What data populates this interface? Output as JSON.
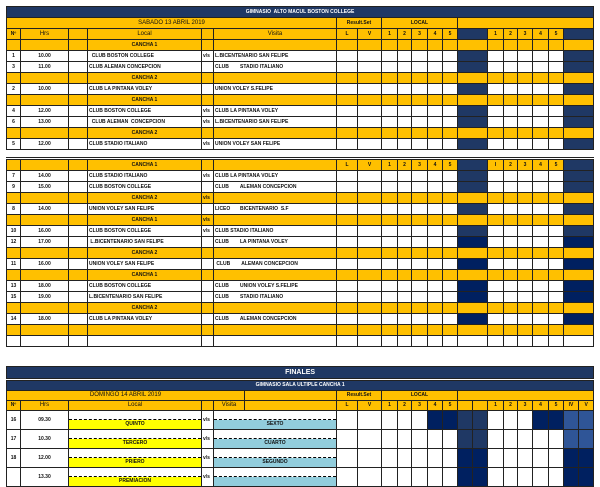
{
  "schedule": {
    "title": "GIMNASIO  ALTO MACUL BOSTON COLLEGE",
    "date": "SABADO 13 ABRIL 2019",
    "result_set": "Result.Set",
    "local_label": "LOCAL",
    "headers": {
      "n": "Nº",
      "hrs": "Hrs",
      "local": "Local",
      "visita": "Visita",
      "l": "L",
      "v": "V",
      "sets": [
        "1",
        "2",
        "3",
        "4",
        "5"
      ]
    },
    "colors": {
      "yellow": "#ffc000",
      "dark": "#1f3864",
      "navy": "#002060"
    },
    "rows": [
      {
        "type": "cancha",
        "label": "CANCHA 1"
      },
      {
        "n": "1",
        "hrs": "10.00",
        "local": "  CLUB BOSTON COLLEGE",
        "vs": "v/s",
        "visita": "L.BICENTENARIO SAN FELIPE",
        "shade": "#1f3864"
      },
      {
        "n": "3",
        "hrs": "11.00",
        "local": "CLUB ALEMAN CONCEPCION",
        "vs": "",
        "visita": "CLUB        STADIO ITALIANO",
        "shade": "#1f3864"
      },
      {
        "type": "cancha",
        "label": "CANCHA 2"
      },
      {
        "n": "2",
        "hrs": "10.00",
        "local": "CLUB LA PINTANA VOLEY",
        "vs": "",
        "visita": "UNION VOLEY S.FELIPE",
        "shade": "#1f3864"
      },
      {
        "type": "cancha",
        "label": "CANCHA 1"
      },
      {
        "n": "4",
        "hrs": "12.00",
        "local": "CLUB BOSTON COLLEGE",
        "vs": "v/s",
        "visita": "CLUB LA PINTANA VOLEY",
        "shade": "#1f3864"
      },
      {
        "n": "6",
        "hrs": "13.00",
        "local": "  CLUB ALEMAN  CONCEPCION",
        "vs": "v/s",
        "visita": "L.BICENTENARIO SAN FELIPE",
        "shade": "#1f3864"
      },
      {
        "type": "cancha",
        "label": "CANCHA 2"
      },
      {
        "n": "5",
        "hrs": "12.00",
        "local": "CLUB STADIO ITALIANO",
        "vs": "v/s",
        "visita": "UNION VOLEY SAN FELIPE",
        "shade": "#1f3864"
      }
    ],
    "second": {
      "header": {
        "label": "CANCHA 1",
        "l": "L",
        "v": "V",
        "sets_left": [
          "1",
          "2",
          "3",
          "4",
          "5"
        ],
        "sets_right": [
          "I",
          "2",
          "3",
          "4",
          "5"
        ]
      },
      "rows": [
        {
          "n": "7",
          "hrs": "14.00",
          "local": "CLUB STADIO ITALIANO",
          "vs": "v/s",
          "visita": "CLUB LA PINTANA VOLEY",
          "shade": "#1f3864"
        },
        {
          "n": "9",
          "hrs": "15.00",
          "local": "CLUB BOSTON COLLEGE",
          "vs": "",
          "visita": "CLUB        ALEMAN CONCEPCION",
          "shade": "#1f3864"
        },
        {
          "type": "cancha",
          "label": "CANCHA 2",
          "vs": "v/s"
        },
        {
          "n": "8",
          "hrs": "14.00",
          "local": "UNION VOLEY SAN FELIPE",
          "vs": "",
          "visita": "LICEO       BICENTENARIO  S.F",
          "shade": "#1f3864"
        },
        {
          "type": "cancha",
          "label": "CANCHA 1",
          "vs": "v/s"
        },
        {
          "n": "10",
          "hrs": "16.00",
          "local": "CLUB BOSTON COLLEGE",
          "vs": "v/s",
          "visita": "CLUB STADIO ITALIANO",
          "shade": "#1f3864"
        },
        {
          "n": "12",
          "hrs": "17.00",
          "local": " L.BICENTENARIO SAN FELIPE",
          "vs": "",
          "visita": "CLUB        LA PINTANA VOLEY",
          "shade": "#002060"
        },
        {
          "type": "cancha",
          "label": "CANCHA 2"
        },
        {
          "n": "11",
          "hrs": "16.00",
          "local": "UNION VOLEY SAN FELIPE",
          "vs": "",
          "visita": " CLUB        ALEMAN CONCEPCION",
          "shade": "#002060"
        },
        {
          "type": "cancha",
          "label": "CANCHA 1"
        },
        {
          "n": "13",
          "hrs": "18.00",
          "local": "CLUB BOSTON COLLEGE",
          "vs": "",
          "visita": "CLUB        UNION VOLEY S.FELIPE",
          "shade": "#002060"
        },
        {
          "n": "15",
          "hrs": "19.00",
          "local": "L.BICENTENARIO SAN FELIPE",
          "vs": "",
          "visita": "CLUB        STADIO ITALIANO",
          "shade": "#002060"
        },
        {
          "type": "cancha",
          "label": "CANCHA 2"
        },
        {
          "n": "14",
          "hrs": "18.00",
          "local": "CLUB LA PINTANA VOLEY",
          "vs": "",
          "visita": "CLUB        ALEMAN CONCEPCION",
          "shade": "#002060"
        },
        {
          "type": "cancha",
          "label": ""
        },
        {
          "type": "blank"
        }
      ]
    }
  },
  "finals": {
    "title": "FINALES",
    "gym": "GIMNASIO SALA ULTIPLE CANCHA 1",
    "date": "DOMINGO 14 ABRIL 2019",
    "result_set": "Result.Set",
    "local_label": "LOCAL",
    "headers": {
      "n": "Nº",
      "hrs": "Hrs",
      "local": "Local",
      "visita": "Visita",
      "l": "L",
      "v": "V",
      "sets": [
        "1",
        "2",
        "3",
        "4",
        "5"
      ],
      "extra": [
        "IV",
        "V"
      ]
    },
    "rows": [
      {
        "n": "16",
        "hrs": "09.30",
        "local": "QUINTO",
        "vs": "v/s",
        "visita": "SEXTO",
        "shade": "#1f3864"
      },
      {
        "n": "17",
        "hrs": "10.30",
        "local": "TERCERO",
        "vs": "v/s",
        "visita": "CUARTO",
        "shade": "#1f3864"
      },
      {
        "n": "18",
        "hrs": "12.00",
        "local": "PRIERO",
        "vs": "v/s",
        "visita": "SEGUNDO",
        "shade": "#002060"
      },
      {
        "n": "",
        "hrs": "13.30",
        "local": "PREMIACION",
        "vs": "v/s",
        "visita": "",
        "shade": "#002060"
      }
    ]
  }
}
